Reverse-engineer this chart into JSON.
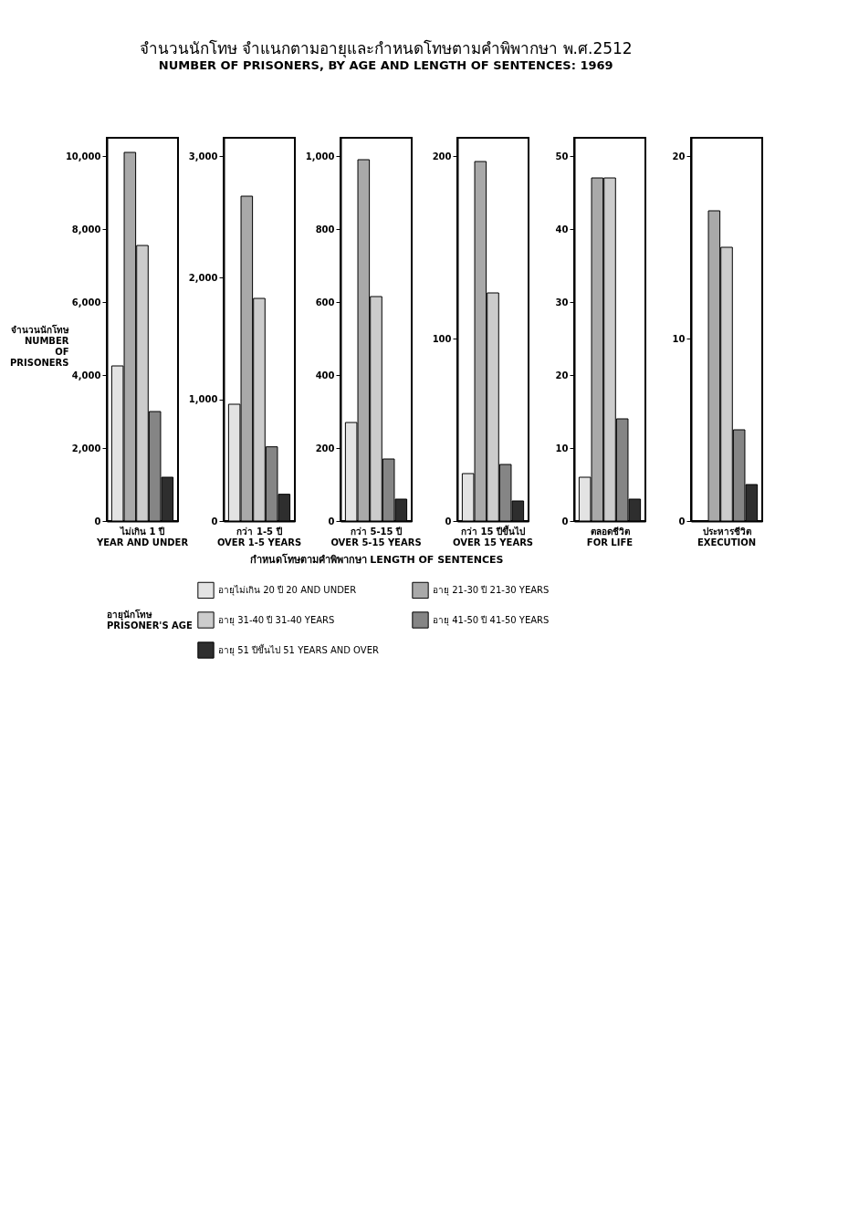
{
  "chart_data": [
    {
      "type": "other",
      "title": "จำนวนนักโทษ จำแนกตามอายุและกำหนดโทษตามคำพิพากษา พ.ศ.2512",
      "subtitle": "NUMBER OF PRISONERS, BY AGE AND LENGTH OF SENTENCES: 1969"
    },
    {
      "type": "bar",
      "ylabel": "จำนวนนักโทษ\nNUMBER\nOF\nPRISONERS",
      "legend_title": "อายุนักโทษ\nPRISONER'S AGE",
      "legend": "bottom",
      "categories": [
        "ไม่เกิน 1 ปี\nYEAR AND UNDER"
      ],
      "ylim": [
        0,
        10500
      ],
      "yticks": [
        0,
        {
          "value": 2000,
          "label": "2,000"
        },
        {
          "value": 4000,
          "label": "4,000"
        },
        {
          "value": 6000,
          "label": "6,000"
        },
        {
          "value": 8000,
          "label": "8,000"
        },
        {
          "value": 10000,
          "label": "10,000"
        }
      ],
      "series": [
        {
          "name": "อายุไม่เกิน 20 ปี  20 AND UNDER",
          "color": "#e3e3e3",
          "values": [
            4250
          ]
        },
        {
          "name": "อายุ 21-30 ปี  21-30 YEARS",
          "color": "#a9a9a9",
          "values": [
            10100
          ]
        },
        {
          "name": "อายุ 31-40 ปี  31-40 YEARS",
          "color": "#cccccc",
          "values": [
            7550
          ]
        },
        {
          "name": "อายุ 41-50 ปี  41-50 YEARS",
          "color": "#858585",
          "values": [
            3000
          ]
        },
        {
          "name": "อายุ 51 ปีขึ้นไป  51 YEARS AND OVER",
          "color": "#2e2e2e",
          "values": [
            1200
          ]
        }
      ]
    },
    {
      "type": "bar",
      "categories": [
        "กว่า 1-5 ปี\nOVER 1-5 YEARS"
      ],
      "ylim": [
        0,
        3150
      ],
      "yticks": [
        0,
        {
          "value": 1000,
          "label": "1,000"
        },
        {
          "value": 2000,
          "label": "2,000"
        },
        {
          "value": 3000,
          "label": "3,000"
        }
      ],
      "series": [
        {
          "name": "อายุไม่เกิน 20 ปี  20 AND UNDER",
          "color": "#e3e3e3",
          "values": [
            960
          ]
        },
        {
          "name": "อายุ 21-30 ปี  21-30 YEARS",
          "color": "#a9a9a9",
          "values": [
            2670
          ]
        },
        {
          "name": "อายุ 31-40 ปี  31-40 YEARS",
          "color": "#cccccc",
          "values": [
            1830
          ]
        },
        {
          "name": "อายุ 41-50 ปี  41-50 YEARS",
          "color": "#858585",
          "values": [
            610
          ]
        },
        {
          "name": "อายุ 51 ปีขึ้นไป  51 YEARS AND OVER",
          "color": "#2e2e2e",
          "values": [
            220
          ]
        }
      ]
    },
    {
      "type": "bar",
      "xlabel": "กำหนดโทษตามคำพิพากษา   LENGTH OF SENTENCES",
      "categories": [
        "กว่า 5-15 ปี\nOVER 5-15 YEARS"
      ],
      "ylim": [
        0,
        1050
      ],
      "yticks": [
        0,
        200,
        400,
        600,
        800,
        {
          "value": 1000,
          "label": "1,000"
        }
      ],
      "series": [
        {
          "name": "อายุไม่เกิน 20 ปี  20 AND UNDER",
          "color": "#e3e3e3",
          "values": [
            270
          ]
        },
        {
          "name": "อายุ 21-30 ปี  21-30 YEARS",
          "color": "#a9a9a9",
          "values": [
            990
          ]
        },
        {
          "name": "อายุ 31-40 ปี  31-40 YEARS",
          "color": "#cccccc",
          "values": [
            615
          ]
        },
        {
          "name": "อายุ 41-50 ปี  41-50 YEARS",
          "color": "#858585",
          "values": [
            170
          ]
        },
        {
          "name": "อายุ 51 ปีขึ้นไป  51 YEARS AND OVER",
          "color": "#2e2e2e",
          "values": [
            60
          ]
        }
      ]
    },
    {
      "type": "bar",
      "categories": [
        "กว่า 15 ปีขึ้นไป\nOVER 15 YEARS"
      ],
      "ylim": [
        0,
        210
      ],
      "yticks": [
        0,
        100,
        200
      ],
      "series": [
        {
          "name": "อายุไม่เกิน 20 ปี  20 AND UNDER",
          "color": "#e3e3e3",
          "values": [
            26
          ]
        },
        {
          "name": "อายุ 21-30 ปี  21-30 YEARS",
          "color": "#a9a9a9",
          "values": [
            197
          ]
        },
        {
          "name": "อายุ 31-40 ปี  31-40 YEARS",
          "color": "#cccccc",
          "values": [
            125
          ]
        },
        {
          "name": "อายุ 41-50 ปี  41-50 YEARS",
          "color": "#858585",
          "values": [
            31
          ]
        },
        {
          "name": "อายุ 51 ปีขึ้นไป  51 YEARS AND OVER",
          "color": "#2e2e2e",
          "values": [
            11
          ]
        }
      ]
    },
    {
      "type": "bar",
      "categories": [
        "ตลอดชีวิต\nFOR LIFE"
      ],
      "ylim": [
        0,
        52.5
      ],
      "yticks": [
        0,
        10,
        20,
        30,
        40,
        50
      ],
      "series": [
        {
          "name": "อายุไม่เกิน 20 ปี  20 AND UNDER",
          "color": "#e3e3e3",
          "values": [
            6
          ]
        },
        {
          "name": "อายุ 21-30 ปี  21-30 YEARS",
          "color": "#a9a9a9",
          "values": [
            47
          ]
        },
        {
          "name": "อายุ 31-40 ปี  31-40 YEARS",
          "color": "#cccccc",
          "values": [
            47
          ]
        },
        {
          "name": "อายุ 41-50 ปี  41-50 YEARS",
          "color": "#858585",
          "values": [
            14
          ]
        },
        {
          "name": "อายุ 51 ปีขึ้นไป  51 YEARS AND OVER",
          "color": "#2e2e2e",
          "values": [
            3
          ]
        }
      ]
    },
    {
      "type": "bar",
      "categories": [
        "ประหารชีวิต\nEXECUTION"
      ],
      "ylim": [
        0,
        21
      ],
      "yticks": [
        0,
        10,
        20
      ],
      "series": [
        {
          "name": "อายุไม่เกิน 20 ปี  20 AND UNDER",
          "color": "#e3e3e3",
          "values": [
            0
          ]
        },
        {
          "name": "อายุ 21-30 ปี  21-30 YEARS",
          "color": "#a9a9a9",
          "values": [
            17
          ]
        },
        {
          "name": "อายุ 31-40 ปี  31-40 YEARS",
          "color": "#cccccc",
          "values": [
            15
          ]
        },
        {
          "name": "อายุ 41-50 ปี  41-50 YEARS",
          "color": "#858585",
          "values": [
            5
          ]
        },
        {
          "name": "อายุ 51 ปีขึ้นไป  51 YEARS AND OVER",
          "color": "#2e2e2e",
          "values": [
            2
          ]
        }
      ]
    }
  ]
}
